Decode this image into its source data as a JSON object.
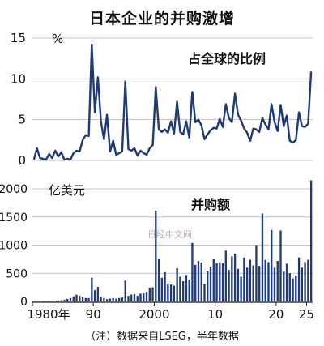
{
  "title": "日本企业的并购激增",
  "footnote": "（注）数据来自LSEG，半年数据",
  "watermark": "日经中文网",
  "colors": {
    "line": "#1e3a78",
    "bar": "#1e3a78",
    "grid": "#bfc3c8",
    "axis": "#222222",
    "text": "#111111"
  },
  "chart_data": [
    {
      "type": "line",
      "title": "占全球的比例",
      "ylabel": "%",
      "ylim": [
        0,
        15
      ],
      "yticks": [
        0,
        5,
        10,
        15
      ],
      "grid": true,
      "series": [
        {
          "values": [
            0.1,
            1.5,
            0.3,
            0.2,
            0.1,
            0.8,
            0.3,
            1.2,
            0.5,
            1.0,
            0.1,
            0.2,
            0.1,
            0.9,
            1.2,
            1.1,
            2.5,
            3.1,
            3.0,
            14.2,
            5.9,
            10.2,
            4.8,
            2.6,
            5.6,
            1.1,
            2.4,
            0.7,
            0.9,
            1.1,
            9.7,
            1.4,
            1.2,
            1.5,
            0.6,
            1.2,
            0.9,
            0.7,
            1.5,
            1.9,
            9.0,
            3.8,
            3.5,
            3.8,
            3.4,
            4.8,
            3.3,
            7.2,
            3.5,
            3.2,
            4.8,
            2.8,
            8.4,
            4.7,
            5.0,
            4.3,
            2.6,
            3.2,
            3.7,
            4.0,
            3.9,
            5.1,
            4.1,
            6.9,
            5.2,
            4.7,
            8.2,
            5.6,
            4.9,
            3.9,
            3.4,
            2.4,
            3.9,
            3.8,
            3.5,
            5.2,
            4.4,
            3.8,
            6.9,
            4.7,
            3.6,
            6.8,
            4.2,
            5.5,
            2.4,
            2.2,
            2.5,
            5.9,
            4.2,
            4.1,
            4.5,
            10.9
          ]
        }
      ]
    },
    {
      "type": "bar",
      "title": "并购额",
      "ylabel": "亿美元",
      "ylim": [
        0,
        2000
      ],
      "yticks": [
        0,
        500,
        1000,
        1500,
        2000
      ],
      "grid": true,
      "x_start": 1980,
      "periods_per_year": 2,
      "xticks": [
        {
          "year": 1980,
          "label": "1980年"
        },
        {
          "year": 1990,
          "label": "90"
        },
        {
          "year": 2000,
          "label": "2000"
        },
        {
          "year": 2010,
          "label": "10"
        },
        {
          "year": 2020,
          "label": "20"
        },
        {
          "year": 2025,
          "label": "25"
        }
      ],
      "values": [
        2,
        3,
        3,
        5,
        5,
        6,
        8,
        12,
        15,
        20,
        30,
        45,
        60,
        90,
        120,
        100,
        80,
        60,
        60,
        420,
        200,
        260,
        80,
        60,
        40,
        50,
        60,
        50,
        60,
        70,
        370,
        100,
        120,
        130,
        100,
        140,
        150,
        170,
        240,
        250,
        1610,
        750,
        420,
        520,
        310,
        300,
        280,
        590,
        440,
        360,
        470,
        390,
        1040,
        650,
        720,
        690,
        310,
        540,
        620,
        750,
        680,
        690,
        680,
        900,
        560,
        800,
        850,
        580,
        440,
        780,
        600,
        740,
        640,
        1000,
        630,
        1560,
        740,
        700,
        1270,
        600,
        720,
        1260,
        530,
        670,
        500,
        410,
        460,
        780,
        600,
        700,
        740,
        2150
      ]
    }
  ]
}
